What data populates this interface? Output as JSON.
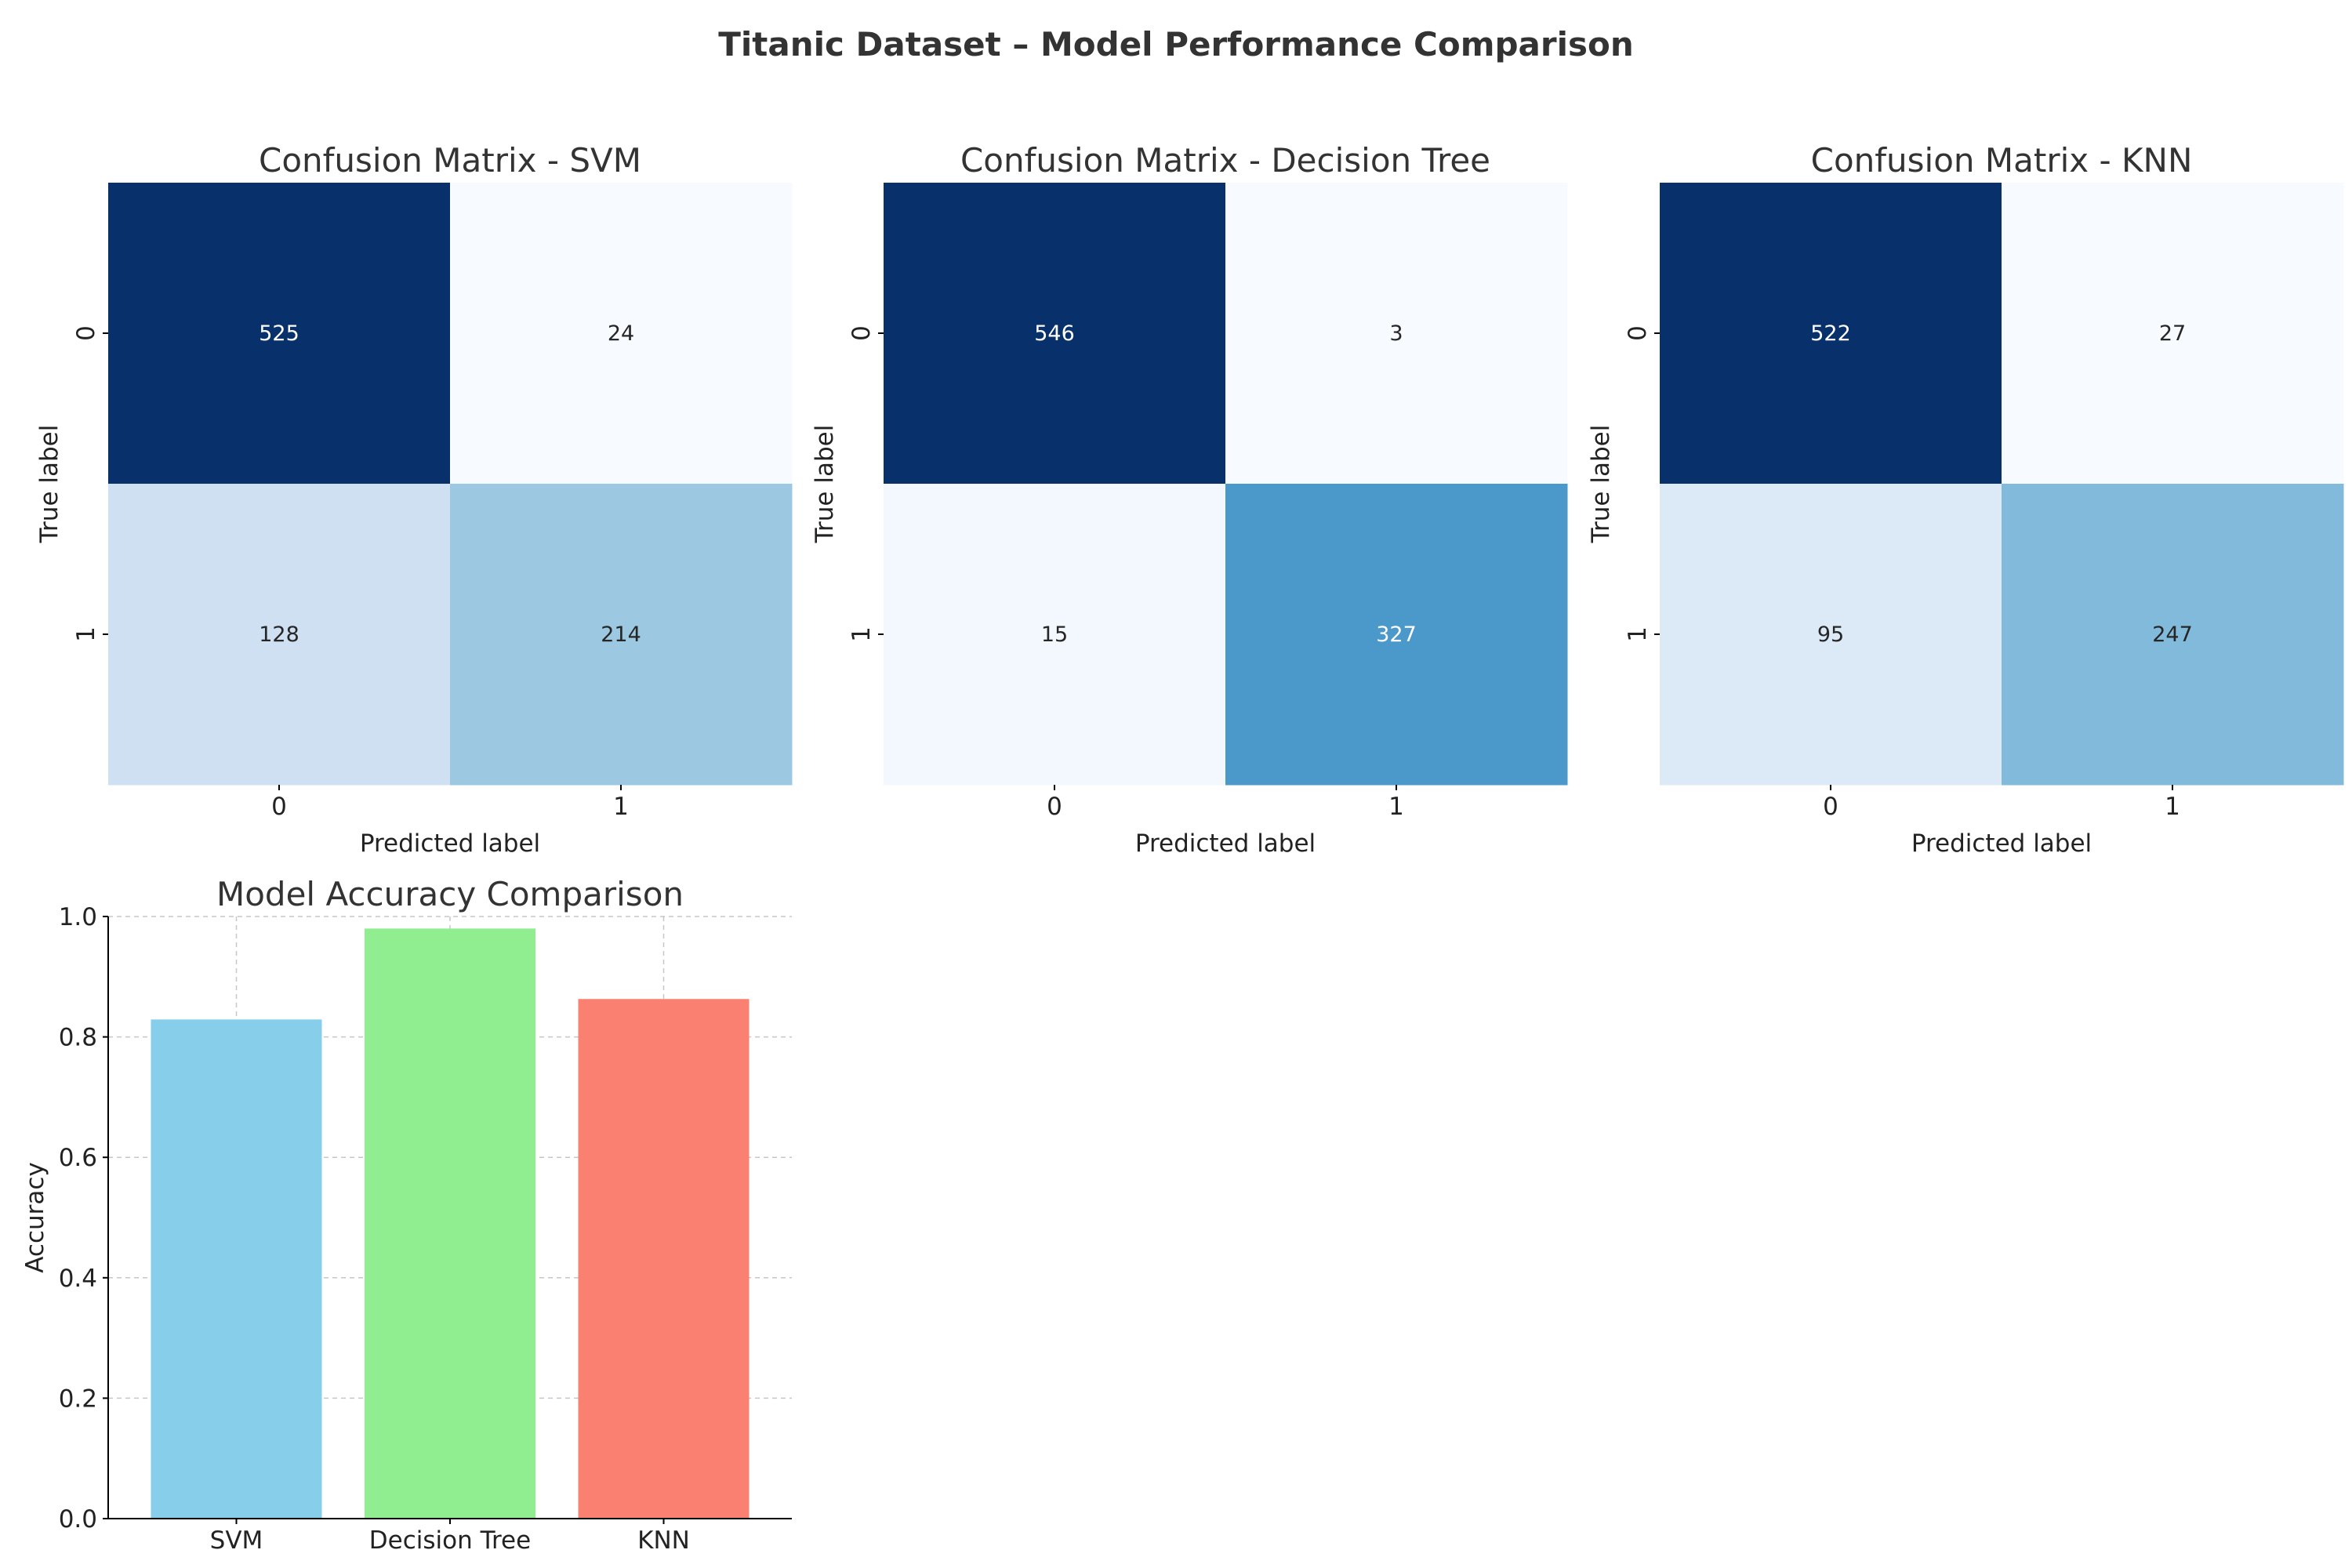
{
  "figure": {
    "title": "Titanic Dataset – Model Performance Comparison"
  },
  "chart_data": [
    {
      "type": "heatmap",
      "title": "Confusion Matrix - SVM",
      "xlabel": "Predicted label",
      "ylabel": "True label",
      "x_categories": [
        "0",
        "1"
      ],
      "y_categories": [
        "0",
        "1"
      ],
      "values": [
        [
          525,
          24
        ],
        [
          128,
          214
        ]
      ],
      "colormap": "Blues"
    },
    {
      "type": "heatmap",
      "title": "Confusion Matrix - Decision Tree",
      "xlabel": "Predicted label",
      "ylabel": "True label",
      "x_categories": [
        "0",
        "1"
      ],
      "y_categories": [
        "0",
        "1"
      ],
      "values": [
        [
          546,
          3
        ],
        [
          15,
          327
        ]
      ],
      "colormap": "Blues"
    },
    {
      "type": "heatmap",
      "title": "Confusion Matrix - KNN",
      "xlabel": "Predicted label",
      "ylabel": "True label",
      "x_categories": [
        "0",
        "1"
      ],
      "y_categories": [
        "0",
        "1"
      ],
      "values": [
        [
          522,
          27
        ],
        [
          95,
          247
        ]
      ],
      "colormap": "Blues"
    },
    {
      "type": "bar",
      "title": "Model Accuracy Comparison",
      "xlabel": "",
      "ylabel": "Accuracy",
      "categories": [
        "SVM",
        "Decision Tree",
        "KNN"
      ],
      "values": [
        0.829,
        0.98,
        0.863
      ],
      "colors": [
        "#87ceeb",
        "#90ee90",
        "#fa8072"
      ],
      "ylim": [
        0,
        1.0
      ],
      "yticks": [
        "0.0",
        "0.2",
        "0.4",
        "0.6",
        "0.8",
        "1.0"
      ],
      "grid": true
    }
  ]
}
